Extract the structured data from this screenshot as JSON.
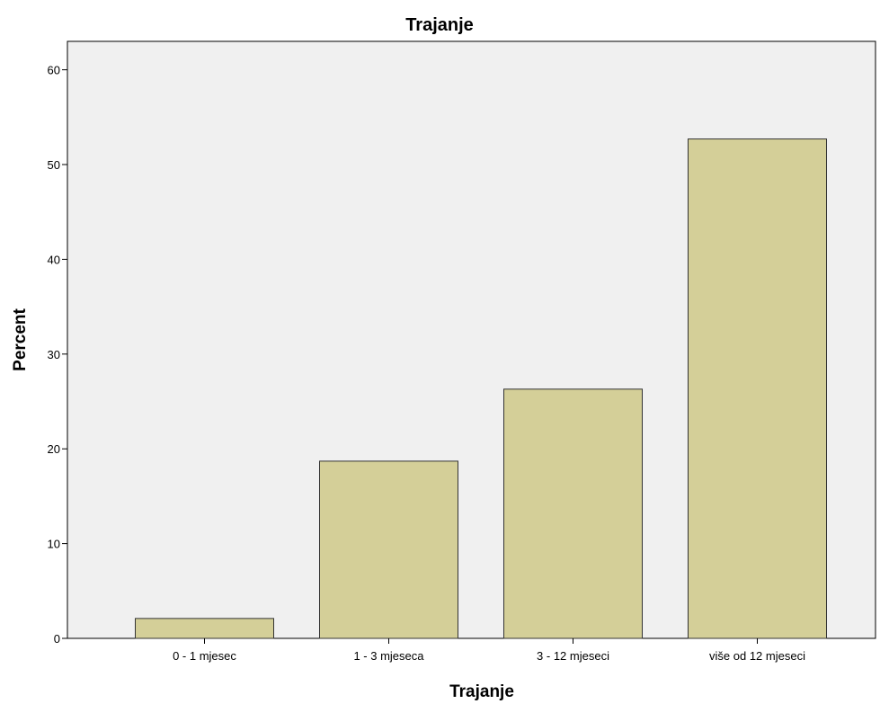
{
  "chart_data": {
    "type": "bar",
    "title": "Trajanje",
    "xlabel": "Trajanje",
    "ylabel": "Percent",
    "categories": [
      "0 - 1 mjesec",
      "1 - 3 mjeseca",
      "3 - 12 mjeseci",
      "više od 12 mjeseci"
    ],
    "values": [
      2.1,
      18.7,
      26.3,
      52.7
    ],
    "ylim": [
      0,
      63
    ],
    "yticks": [
      0,
      10,
      20,
      30,
      40,
      50,
      60
    ],
    "grid": false,
    "legend": "none",
    "colors": {
      "bar": "#d4cf98",
      "plot_background": "#f0f0f0"
    }
  }
}
